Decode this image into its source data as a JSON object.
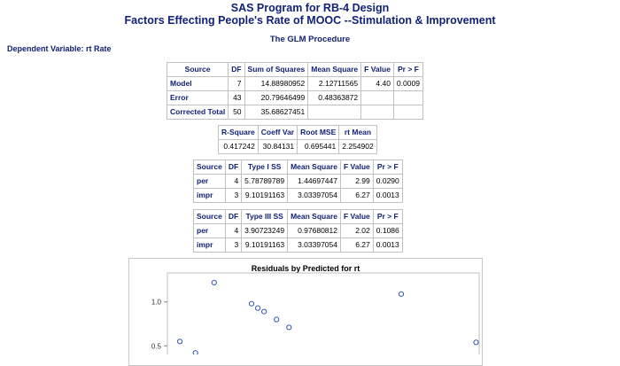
{
  "header": {
    "title_line1": "SAS Program for RB-4 Design",
    "title_line2": "Factors Effecting People's Rate of MOOC --Stimulation & Improvement",
    "procedure": "The GLM Procedure",
    "dependent_variable": "Dependent Variable: rt Rate"
  },
  "anova": {
    "headers": [
      "Source",
      "DF",
      "Sum of Squares",
      "Mean Square",
      "F Value",
      "Pr > F"
    ],
    "rows": [
      [
        "Model",
        "7",
        "14.88980952",
        "2.12711565",
        "4.40",
        "0.0009"
      ],
      [
        "Error",
        "43",
        "20.79646499",
        "0.48363872",
        "",
        ""
      ],
      [
        "Corrected Total",
        "50",
        "35.68627451",
        "",
        "",
        ""
      ]
    ]
  },
  "fit": {
    "headers": [
      "R-Square",
      "Coeff Var",
      "Root MSE",
      "rt Mean"
    ],
    "rows": [
      [
        "0.417242",
        "30.84131",
        "0.695441",
        "2.254902"
      ]
    ]
  },
  "type1": {
    "headers": [
      "Source",
      "DF",
      "Type I SS",
      "Mean Square",
      "F Value",
      "Pr > F"
    ],
    "rows": [
      [
        "per",
        "4",
        "5.78789789",
        "1.44697447",
        "2.99",
        "0.0290"
      ],
      [
        "impr",
        "3",
        "9.10191163",
        "3.03397054",
        "6.27",
        "0.0013"
      ]
    ]
  },
  "type3": {
    "headers": [
      "Source",
      "DF",
      "Type III SS",
      "Mean Square",
      "F Value",
      "Pr > F"
    ],
    "rows": [
      [
        "per",
        "4",
        "3.90723249",
        "0.97680812",
        "2.02",
        "0.1086"
      ],
      [
        "impr",
        "3",
        "9.10191163",
        "3.03397054",
        "6.27",
        "0.0013"
      ]
    ]
  },
  "chart_data": {
    "type": "scatter",
    "title": "Residuals by Predicted for rt",
    "xlabel": "",
    "ylabel": "",
    "y_ticks": [
      "1.0",
      "0.5"
    ],
    "ylim": [
      0.2,
      1.33
    ],
    "xlim": [
      0,
      1
    ],
    "points": [
      {
        "x": 0.04,
        "y": 0.55
      },
      {
        "x": 0.09,
        "y": 0.42
      },
      {
        "x": 0.15,
        "y": 1.22
      },
      {
        "x": 0.27,
        "y": 0.98
      },
      {
        "x": 0.29,
        "y": 0.93
      },
      {
        "x": 0.31,
        "y": 0.89
      },
      {
        "x": 0.35,
        "y": 0.8
      },
      {
        "x": 0.39,
        "y": 0.71
      },
      {
        "x": 0.65,
        "y": 0.37
      },
      {
        "x": 0.75,
        "y": 1.09
      },
      {
        "x": 0.99,
        "y": 0.54
      }
    ],
    "marker_color": "#3355aa",
    "grid": false
  }
}
